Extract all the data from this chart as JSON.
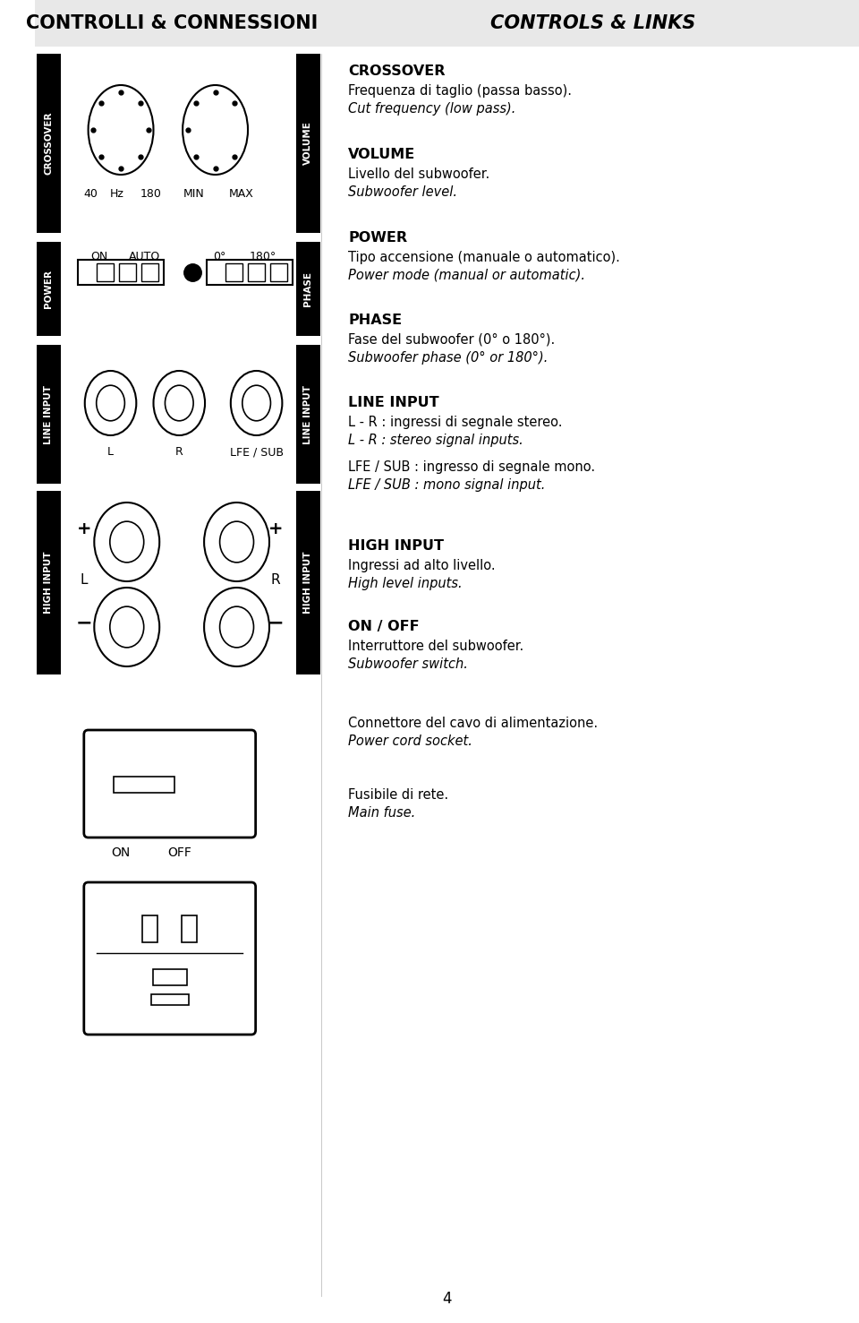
{
  "title_left": "CONTROLLI & CONNESSIONI",
  "title_right": "CONTROLS & LINKS",
  "bg_color": "#ffffff",
  "label_bg": "#000000",
  "label_fg": "#ffffff",
  "sections": {
    "crossover": {
      "label": "CROSSOVER",
      "heading": "CROSSOVER",
      "line1": "Frequenza di taglio (passa basso).",
      "line2": "Cut frequency (low pass)."
    },
    "volume": {
      "label": "VOLUME",
      "heading": "VOLUME",
      "line1": "Livello del subwoofer.",
      "line2": "Subwoofer level."
    },
    "power": {
      "label": "POWER",
      "heading": "POWER",
      "line1": "Tipo accensione (manuale o automatico).",
      "line2": "Power mode (manual or automatic)."
    },
    "phase": {
      "label": "PHASE",
      "heading": "PHASE",
      "line1": "Fase del subwoofer (0° o 180°).",
      "line2": "Subwoofer phase (0° or 180°)."
    },
    "line_input": {
      "label": "LINE INPUT",
      "heading": "LINE INPUT",
      "line1": "L - R : ingressi di segnale stereo.",
      "line2": "L - R : stereo signal inputs.",
      "line3": "LFE / SUB : ingresso di segnale mono.",
      "line4": "LFE / SUB : mono signal input."
    },
    "high_input": {
      "label": "HIGH INPUT",
      "heading": "HIGH INPUT",
      "line1": "Ingressi ad alto livello.",
      "line2": "High level inputs."
    },
    "on_off": {
      "heading": "ON / OFF",
      "line1": "Interruttore del subwoofer.",
      "line2": "Subwoofer switch."
    },
    "connector": {
      "line1": "Connettore del cavo di alimentazione.",
      "line2": "Power cord socket."
    },
    "fuse": {
      "line1": "Fusibile di rete.",
      "line2": "Main fuse."
    }
  }
}
